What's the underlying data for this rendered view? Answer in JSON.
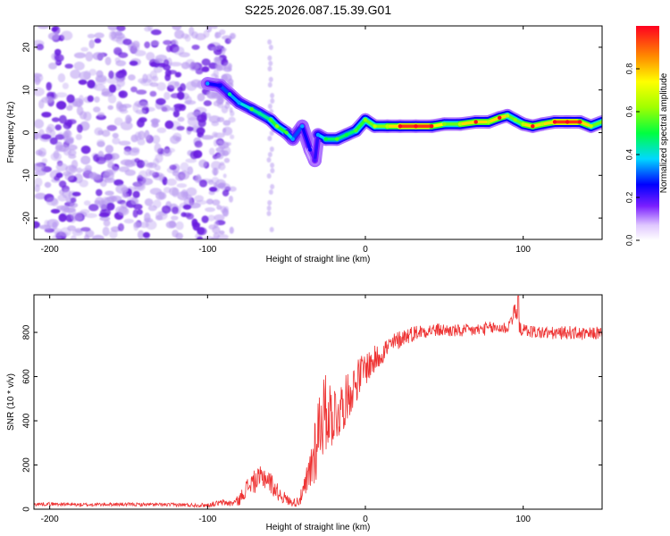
{
  "figure": {
    "title": "S225.2026.087.15.39.G01"
  },
  "colors": {
    "snr_line": "#ee3333",
    "strong_blob": "#6a1fe0",
    "weak_blob": "#b89af0",
    "axis": "#000000"
  },
  "chart_data": [
    {
      "type": "heatmap",
      "title": "S225.2026.087.15.39.G01",
      "xlabel": "Height of straight line (km)",
      "ylabel": "Frequency (Hz)",
      "xlim": [
        -210,
        150
      ],
      "ylim": [
        -25,
        25
      ],
      "xticks": [
        -200,
        -100,
        0,
        100
      ],
      "yticks": [
        -20,
        -10,
        0,
        10,
        20
      ],
      "xtick_labels": [
        "-200",
        "-100",
        "0",
        "100"
      ],
      "ytick_labels": [
        "-20",
        "-10",
        "0",
        "10",
        "20"
      ],
      "colorbar": {
        "label": "Normalized spectral amplitude",
        "range": [
          0.0,
          1.0
        ],
        "ticks": [
          0.0,
          0.2,
          0.4,
          0.6,
          0.8
        ],
        "tick_labels": [
          "0.0",
          "0.2",
          "0.4",
          "0.6",
          "0.8"
        ]
      },
      "ridge": [
        {
          "x": -100,
          "y": 11.5,
          "amp": 0.3
        },
        {
          "x": -92,
          "y": 11,
          "amp": 0.2
        },
        {
          "x": -86,
          "y": 9,
          "amp": 0.4
        },
        {
          "x": -80,
          "y": 7,
          "amp": 0.3
        },
        {
          "x": -72,
          "y": 5.5,
          "amp": 0.5
        },
        {
          "x": -67,
          "y": 4.5,
          "amp": 0.4
        },
        {
          "x": -60,
          "y": 3,
          "amp": 0.5
        },
        {
          "x": -56,
          "y": 1.5,
          "amp": 0.55
        },
        {
          "x": -50,
          "y": 0,
          "amp": 0.5
        },
        {
          "x": -46,
          "y": -1.5,
          "amp": 0.3
        },
        {
          "x": -40,
          "y": 1.5,
          "amp": 0.3
        },
        {
          "x": -35,
          "y": -4,
          "amp": 0.2
        },
        {
          "x": -32,
          "y": -6.5,
          "amp": 0.15
        },
        {
          "x": -30,
          "y": -0.5,
          "amp": 0.3
        },
        {
          "x": -25,
          "y": -1.5,
          "amp": 0.45
        },
        {
          "x": -18,
          "y": -1.5,
          "amp": 0.5
        },
        {
          "x": -12,
          "y": -0.5,
          "amp": 0.45
        },
        {
          "x": -6,
          "y": 0.5,
          "amp": 0.5
        },
        {
          "x": 0,
          "y": 3,
          "amp": 0.55
        },
        {
          "x": 6,
          "y": 1.5,
          "amp": 0.6
        },
        {
          "x": 14,
          "y": 1.5,
          "amp": 0.6
        },
        {
          "x": 22,
          "y": 1.5,
          "amp": 0.95
        },
        {
          "x": 32,
          "y": 1.5,
          "amp": 0.95
        },
        {
          "x": 42,
          "y": 1.5,
          "amp": 0.95
        },
        {
          "x": 50,
          "y": 2,
          "amp": 0.55
        },
        {
          "x": 60,
          "y": 2,
          "amp": 0.6
        },
        {
          "x": 70,
          "y": 2.5,
          "amp": 0.95
        },
        {
          "x": 78,
          "y": 2.5,
          "amp": 0.6
        },
        {
          "x": 85,
          "y": 3.5,
          "amp": 0.95
        },
        {
          "x": 90,
          "y": 4,
          "amp": 0.6
        },
        {
          "x": 95,
          "y": 3,
          "amp": 0.55
        },
        {
          "x": 100,
          "y": 2,
          "amp": 0.6
        },
        {
          "x": 106,
          "y": 1.5,
          "amp": 0.95
        },
        {
          "x": 112,
          "y": 2,
          "amp": 0.6
        },
        {
          "x": 120,
          "y": 2.5,
          "amp": 0.95
        },
        {
          "x": 128,
          "y": 2.5,
          "amp": 0.95
        },
        {
          "x": 136,
          "y": 2.5,
          "amp": 0.95
        },
        {
          "x": 143,
          "y": 1.5,
          "amp": 0.6
        },
        {
          "x": 150,
          "y": 2.5,
          "amp": 0.55
        }
      ],
      "noise_region": {
        "x_range": [
          -210,
          -87
        ],
        "y_range": [
          -25,
          25
        ],
        "streaks_x": [
          -60
        ],
        "amp_range": [
          0.0,
          0.25
        ]
      }
    },
    {
      "type": "line",
      "title": "",
      "xlabel": "Height of straight line (km)",
      "ylabel": "SNR (10 * v/v)",
      "xlim": [
        -210,
        150
      ],
      "ylim": [
        0,
        970
      ],
      "xticks": [
        -200,
        -100,
        0,
        100
      ],
      "yticks": [
        0,
        200,
        400,
        600,
        800
      ],
      "xtick_labels": [
        "-200",
        "-100",
        "0",
        "100"
      ],
      "ytick_labels": [
        "0",
        "200",
        "400",
        "600",
        "800"
      ],
      "series": [
        {
          "name": "SNR",
          "x": [
            -210,
            -200,
            -180,
            -160,
            -140,
            -120,
            -100,
            -95,
            -90,
            -85,
            -80,
            -76,
            -72,
            -68,
            -64,
            -60,
            -56,
            -52,
            -48,
            -44,
            -40,
            -36,
            -32,
            -28,
            -24,
            -20,
            -16,
            -12,
            -8,
            -4,
            0,
            4,
            8,
            12,
            16,
            20,
            24,
            28,
            32,
            40,
            50,
            60,
            70,
            80,
            90,
            95,
            97,
            100,
            110,
            120,
            130,
            140,
            150
          ],
          "y": [
            22,
            24,
            20,
            22,
            21,
            20,
            18,
            25,
            30,
            26,
            40,
            90,
            120,
            130,
            150,
            120,
            80,
            55,
            35,
            30,
            60,
            140,
            280,
            420,
            440,
            430,
            450,
            500,
            550,
            600,
            640,
            660,
            690,
            720,
            740,
            760,
            780,
            790,
            800,
            810,
            810,
            805,
            810,
            820,
            820,
            900,
            820,
            810,
            800,
            795,
            800,
            790,
            800
          ],
          "noise_amp": [
            8,
            8,
            8,
            8,
            8,
            8,
            10,
            12,
            15,
            15,
            25,
            40,
            50,
            55,
            60,
            50,
            40,
            30,
            20,
            20,
            40,
            100,
            180,
            200,
            170,
            150,
            130,
            110,
            100,
            90,
            80,
            70,
            60,
            55,
            50,
            45,
            40,
            38,
            35,
            32,
            30,
            30,
            30,
            30,
            30,
            40,
            30,
            30,
            30,
            30,
            30,
            30,
            30
          ]
        }
      ]
    }
  ]
}
